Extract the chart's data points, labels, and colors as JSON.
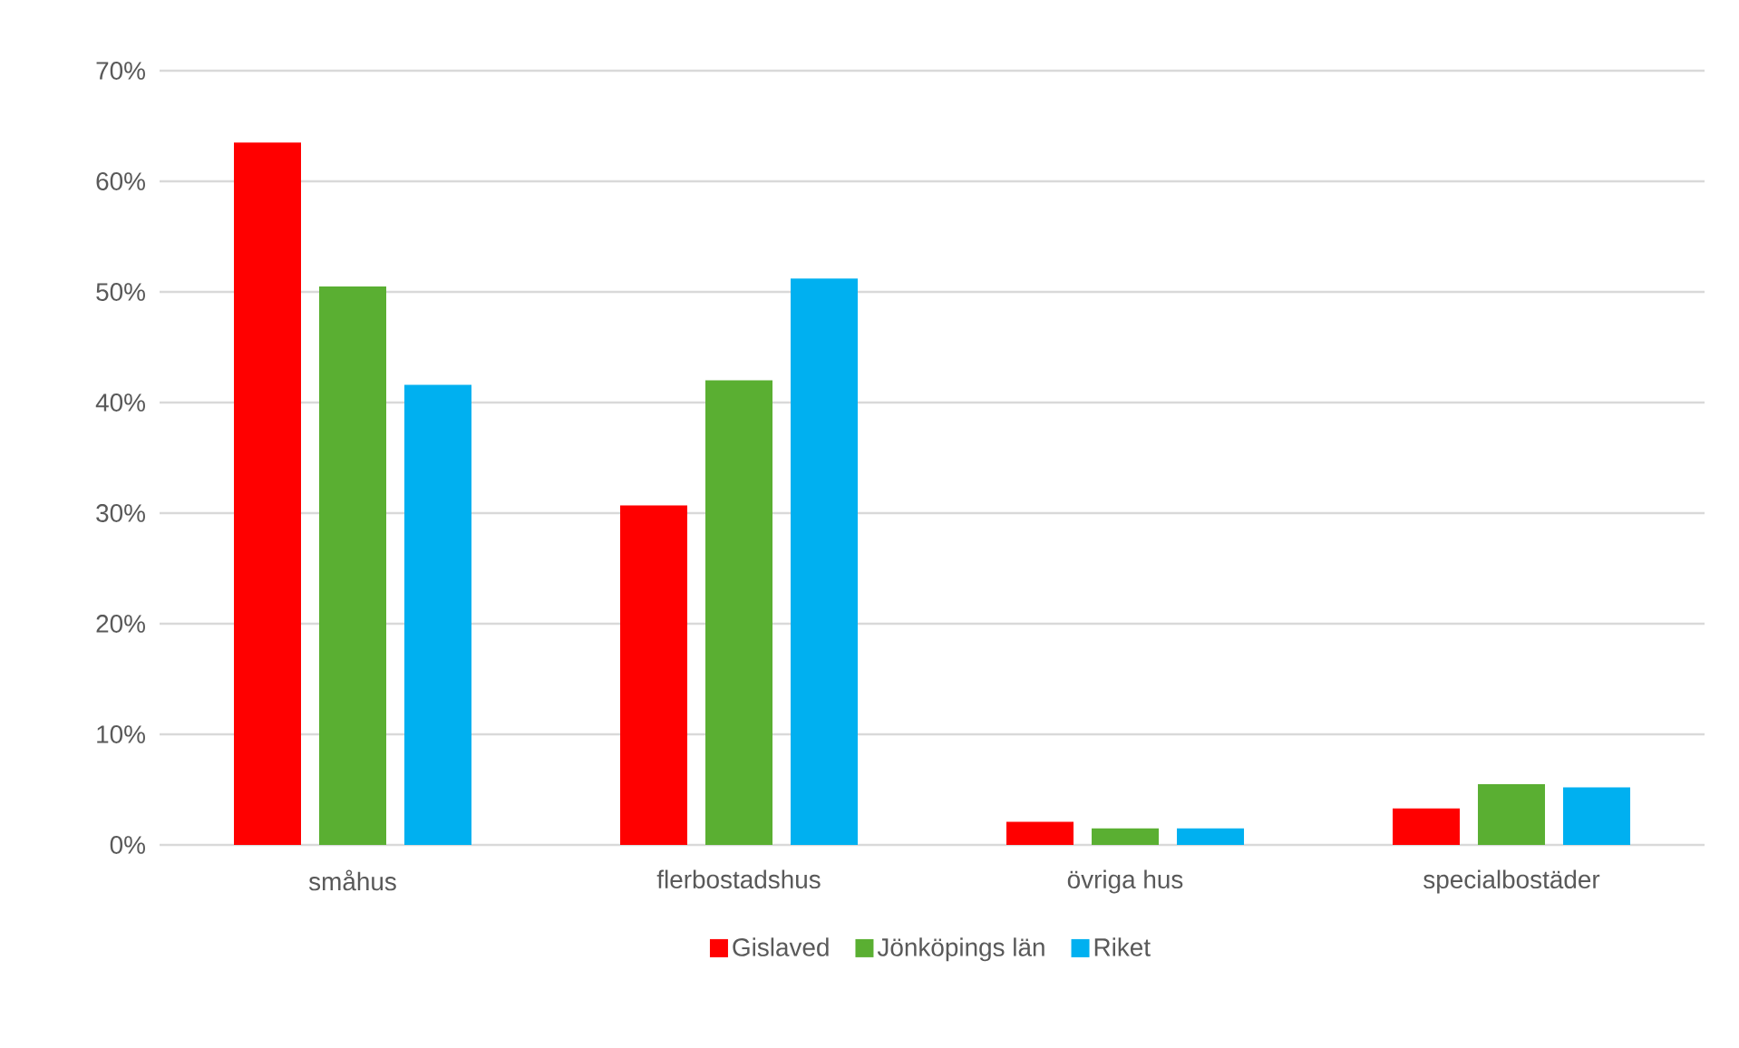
{
  "chart_data": {
    "type": "bar",
    "categories": [
      "småhus",
      "flerbostadshus",
      "övriga hus",
      "specialbostäder"
    ],
    "series": [
      {
        "name": "Gislaved",
        "color": "#ff0000",
        "values": [
          63.5,
          30.7,
          2.1,
          3.3
        ]
      },
      {
        "name": "Jönköpings län",
        "color": "#5aaf32",
        "values": [
          50.5,
          42.0,
          1.5,
          5.5
        ]
      },
      {
        "name": "Riket",
        "color": "#00b0f0",
        "values": [
          41.6,
          51.2,
          1.5,
          5.2
        ]
      }
    ],
    "ylim": [
      0,
      70
    ],
    "yticks": [
      {
        "value": 0,
        "label": "0%"
      },
      {
        "value": 10,
        "label": "10%"
      },
      {
        "value": 20,
        "label": "20%"
      },
      {
        "value": 30,
        "label": "30%"
      },
      {
        "value": 40,
        "label": "40%"
      },
      {
        "value": 50,
        "label": "50%"
      },
      {
        "value": 60,
        "label": "60%"
      },
      {
        "value": 70,
        "label": "70%"
      }
    ],
    "grid": "y",
    "legend": "bottom"
  }
}
